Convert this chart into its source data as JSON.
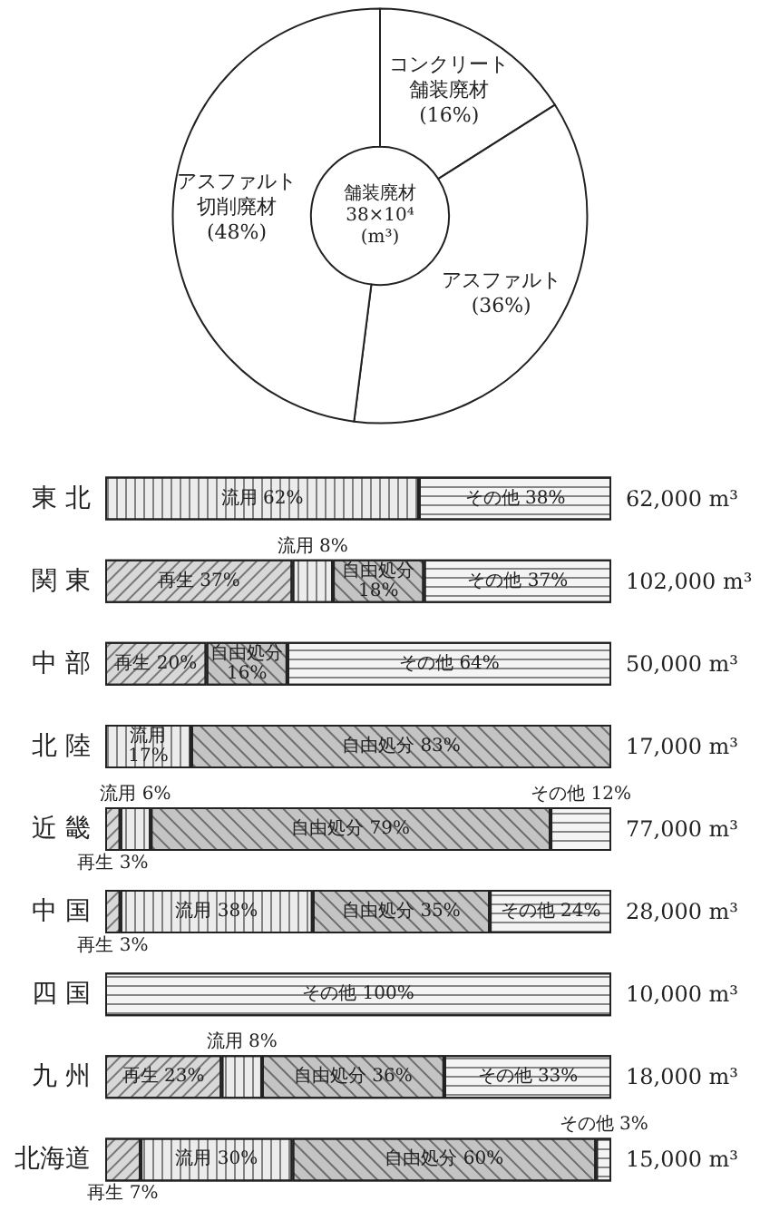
{
  "chart_data": [
    {
      "type": "donut",
      "title": "舗装廃材 38×10⁴ (m³)",
      "categories": [
        "コンクリート舗装廃材",
        "アスファルト",
        "アスファルト切削廃材"
      ],
      "values": [
        16,
        36,
        48
      ],
      "value_labels": [
        "(16%)",
        "(36%)",
        "(48%)"
      ],
      "colors": [
        "#ffffff",
        "#ffffff",
        "#ffffff"
      ]
    },
    {
      "type": "bar",
      "orientation": "horizontal",
      "stacked": true,
      "categories": [
        "東 北",
        "関 東",
        "中 部",
        "北 陸",
        "近 畿",
        "中 国",
        "四 国",
        "九 州",
        "北海道"
      ],
      "series": [
        {
          "color": "#d8d8d8",
          "values": [
            null,
            37,
            20,
            null,
            3,
            3,
            null,
            23,
            7
          ],
          "value_labels": [
            null,
            "再生 37%",
            "再生 20%",
            null,
            "再生 3%",
            "再生 3%",
            null,
            "再生 23%",
            "再生 7%"
          ]
        },
        {
          "color": "#ececec",
          "values": [
            62,
            8,
            null,
            17,
            6,
            38,
            null,
            8,
            30
          ],
          "value_labels": [
            "流用 62%",
            "流用 8%",
            null,
            "流用 17%",
            "流用 6%",
            "流用 38%",
            null,
            "流用 8%",
            "流用 30%"
          ]
        },
        {
          "color": "#c4c4c4",
          "values": [
            null,
            18,
            16,
            83,
            79,
            35,
            null,
            36,
            60
          ],
          "value_labels": [
            null,
            "自由処分 18%",
            "自由処分 16%",
            "自由処分 83%",
            "自由処分 79%",
            "自由処分 35%",
            null,
            "自由処分 36%",
            "自由処分 60%"
          ]
        },
        {
          "color": "#f4f4f4",
          "values": [
            38,
            37,
            64,
            null,
            12,
            24,
            100,
            33,
            3
          ],
          "value_labels": [
            "その他 38%",
            "その他 37%",
            "その他 64%",
            null,
            "その他 12%",
            "その他 24%",
            "その他 100%",
            "その他 33%",
            "その他 3%"
          ]
        }
      ],
      "annotations": [
        "62,000 m³",
        "102,000 m³",
        "50,000 m³",
        "17,000 m³",
        "77,000 m³",
        "28,000 m³",
        "10,000 m³",
        "18,000 m³",
        "15,000 m³"
      ]
    }
  ]
}
